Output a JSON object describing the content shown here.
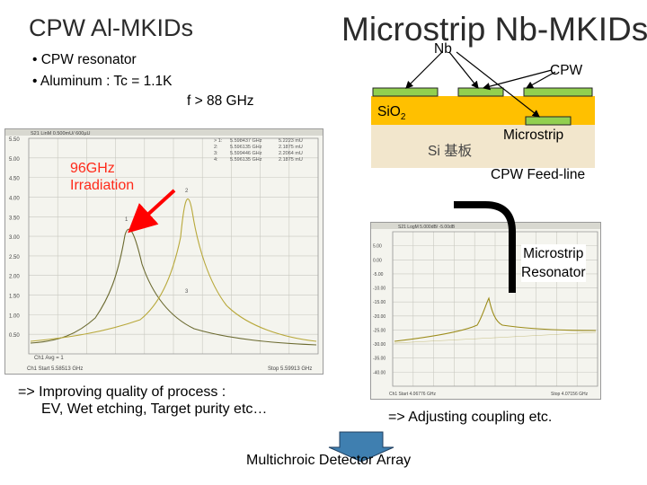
{
  "slide": {
    "title_left": "CPW Al-MKIDs",
    "title_right": "Microstrip Nb-MKIDs",
    "bullets": [
      "• CPW resonator",
      "• Aluminum : Tc = 1.1K"
    ],
    "freq_note": "f > 88 GHz",
    "irradiation_label": [
      "96GHz",
      "Irradiation"
    ],
    "left_note": [
      "=> Improving quality of process :",
      "EV, Wet etching, Target purity etc…"
    ],
    "right_note": "=> Adjusting coupling etc.",
    "bottom_caption": "Multichroic Detector Array",
    "colors": {
      "gold_substrate": "#ffc000",
      "green_metal": "#92d050",
      "red_arrow": "#ff0000",
      "trace": "#9c8c1a"
    }
  },
  "diagram": {
    "nb_label": "Nb",
    "cpw_label": "CPW",
    "sio2_label": "SiO",
    "sio2_sub": "2",
    "si_label": "Si 基板",
    "microstrip_label": "Microstrip",
    "feedline_label": "CPW Feed-line",
    "resonator_label": [
      "Microstrip",
      "Resonator"
    ]
  },
  "chart_left": {
    "header": "S21 LinM 0.500mU/ 600µU",
    "markers": [
      [
        "> 1:",
        "5.598437 GHz",
        "5.2223 mU"
      ],
      [
        "2:",
        "5.596135 GHz",
        "2.1875 mU"
      ],
      [
        "3:",
        "5.599446 GHz",
        "2.2064 mU"
      ],
      [
        "4:",
        "5.596135 GHz",
        "2.1875 mU"
      ]
    ],
    "yticks": [
      "5.50",
      "5.00",
      "4.50",
      "4.00",
      "3.50",
      "3.00",
      "2.50",
      "2.00",
      "1.50",
      "1.00",
      "0.50"
    ],
    "footer": "Ch1 Avg = 1",
    "start": "Ch1 Start 5.58513 GHz",
    "stop": "Stop 5.59913 GHz"
  },
  "chart_right": {
    "header": "S21 LogM 5.000dB/ -5.00dB",
    "yticks": [
      "5.00",
      "0.00",
      "-5.00",
      "-10.00",
      "-15.00",
      "-20.00",
      "-25.00",
      "-30.00",
      "-35.00",
      "-40.00"
    ],
    "start": "Ch1 Start 4.06776 GHz",
    "stop": "Stop 4.07156 GHz"
  }
}
